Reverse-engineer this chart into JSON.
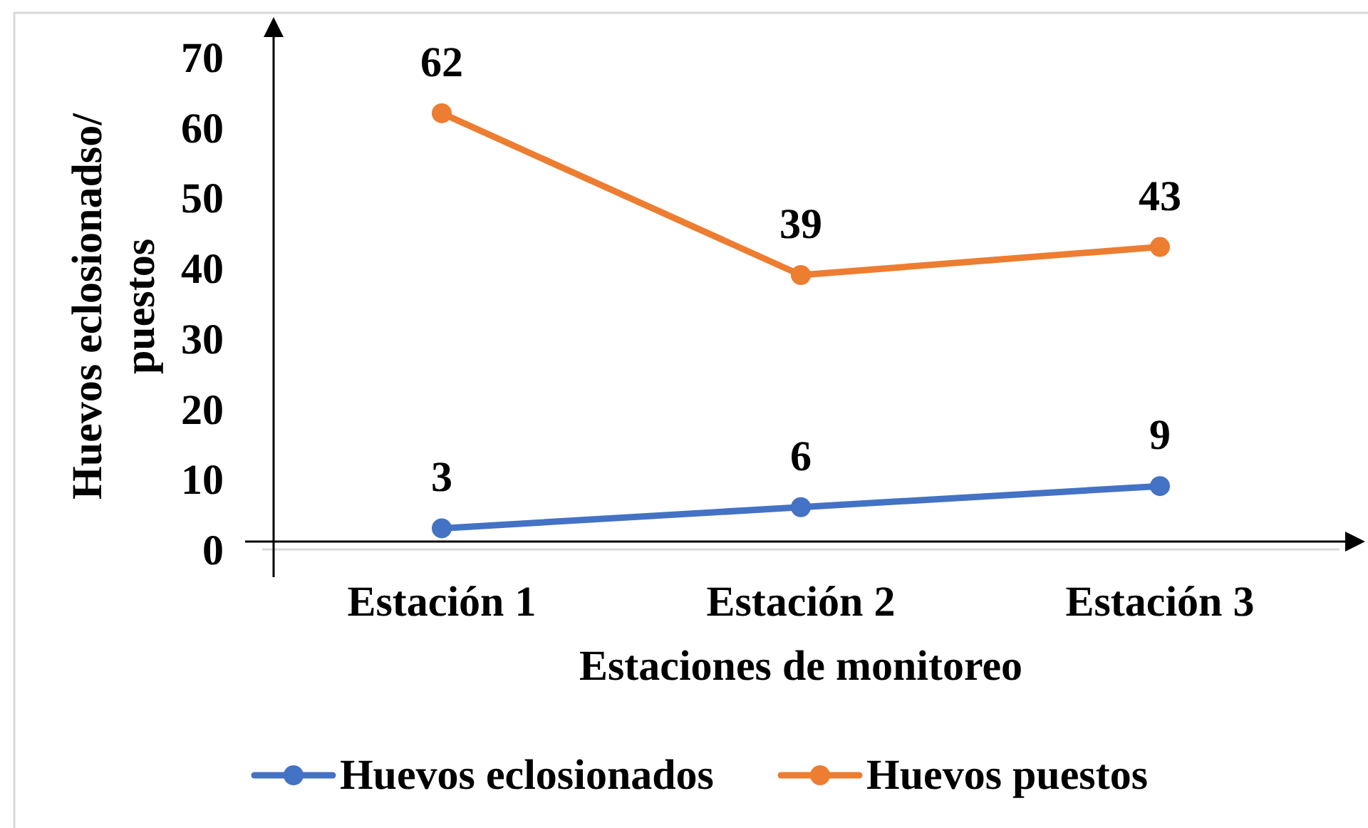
{
  "chart_data": {
    "type": "line",
    "xlabel": "Estaciones de monitoreo",
    "ylabel": "Huevos eclosionadso/ puestos",
    "categories": [
      "Estación 1",
      "Estación 2",
      "Estación 3"
    ],
    "series": [
      {
        "name": "Huevos eclosionados",
        "color": "#4472c4",
        "values": [
          3,
          6,
          9
        ]
      },
      {
        "name": "Huevos puestos",
        "color": "#ed7d31",
        "values": [
          62,
          39,
          43
        ]
      }
    ],
    "ylim": [
      0,
      70
    ],
    "yticks": [
      0,
      10,
      20,
      30,
      40,
      50,
      60,
      70
    ],
    "legend": "bottom",
    "marker": "circle",
    "line_style": "solid",
    "data_labels": true
  }
}
